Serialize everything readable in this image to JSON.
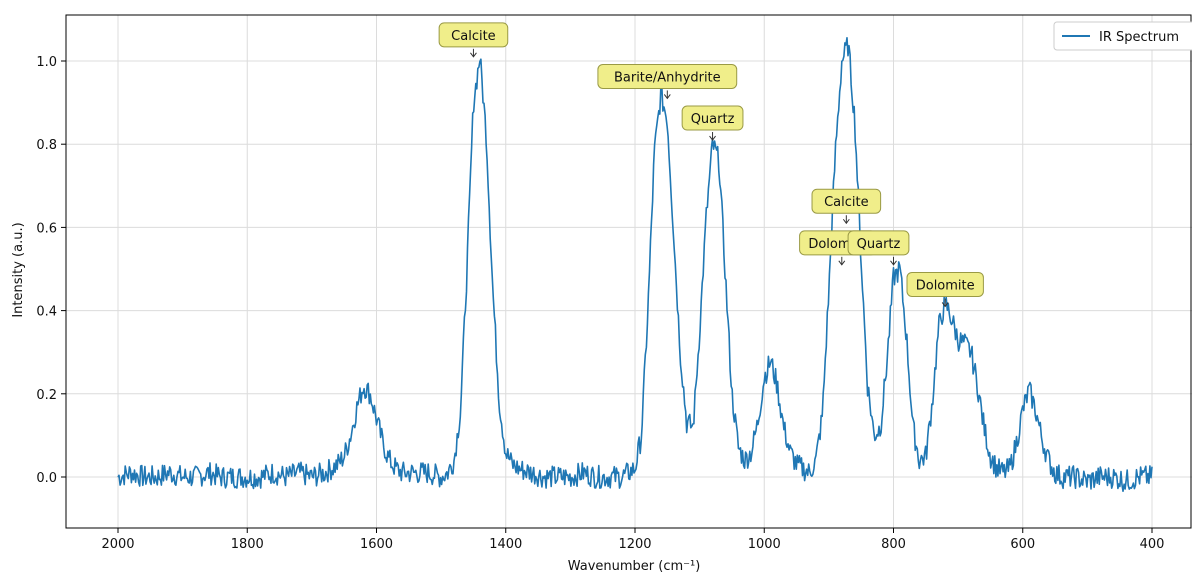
{
  "chart_data": {
    "type": "line",
    "xlabel": "Wavenumber (cm⁻¹)",
    "ylabel": "Intensity (a.u.)",
    "xlim": [
      2000,
      400
    ],
    "x_reversed": true,
    "ylim": [
      -0.12,
      1.1
    ],
    "xticks": [
      2000,
      1800,
      1600,
      1400,
      1200,
      1000,
      800,
      600,
      400
    ],
    "yticks": [
      0.0,
      0.2,
      0.4,
      0.6,
      0.8,
      1.0
    ],
    "grid": true,
    "legend_position": "top-right",
    "series": [
      {
        "name": "IR Spectrum",
        "color": "#1f77b4",
        "x": [
          2000,
          1980,
          1960,
          1940,
          1920,
          1900,
          1880,
          1860,
          1840,
          1820,
          1800,
          1780,
          1760,
          1740,
          1720,
          1700,
          1680,
          1660,
          1650,
          1640,
          1630,
          1620,
          1610,
          1600,
          1590,
          1580,
          1570,
          1560,
          1540,
          1520,
          1500,
          1490,
          1480,
          1470,
          1460,
          1450,
          1440,
          1430,
          1420,
          1410,
          1400,
          1390,
          1380,
          1360,
          1340,
          1320,
          1300,
          1280,
          1260,
          1240,
          1220,
          1200,
          1190,
          1180,
          1170,
          1160,
          1150,
          1140,
          1130,
          1120,
          1110,
          1100,
          1090,
          1080,
          1070,
          1060,
          1050,
          1040,
          1030,
          1020,
          1010,
          1000,
          990,
          980,
          970,
          960,
          950,
          940,
          930,
          920,
          910,
          900,
          890,
          880,
          870,
          860,
          850,
          840,
          830,
          820,
          810,
          800,
          790,
          780,
          770,
          760,
          750,
          740,
          730,
          720,
          710,
          700,
          690,
          680,
          670,
          660,
          650,
          640,
          630,
          620,
          610,
          600,
          590,
          580,
          570,
          560,
          550,
          540,
          520,
          500,
          480,
          460,
          440,
          420,
          400
        ],
        "y": [
          0.0,
          0.01,
          0.0,
          0.0,
          0.01,
          0.0,
          0.0,
          0.01,
          0.0,
          0.0,
          0.0,
          0.0,
          0.01,
          0.0,
          0.01,
          0.0,
          0.01,
          0.03,
          0.05,
          0.1,
          0.17,
          0.22,
          0.2,
          0.14,
          0.08,
          0.04,
          0.02,
          0.01,
          0.01,
          0.01,
          0.0,
          0.01,
          0.04,
          0.16,
          0.5,
          0.9,
          1.01,
          0.82,
          0.45,
          0.18,
          0.06,
          0.03,
          0.02,
          0.01,
          0.0,
          0.0,
          0.0,
          0.01,
          0.0,
          0.0,
          0.0,
          0.02,
          0.1,
          0.4,
          0.78,
          0.92,
          0.86,
          0.58,
          0.3,
          0.13,
          0.12,
          0.35,
          0.62,
          0.8,
          0.76,
          0.48,
          0.2,
          0.07,
          0.04,
          0.06,
          0.13,
          0.24,
          0.28,
          0.22,
          0.12,
          0.06,
          0.03,
          0.02,
          0.01,
          0.04,
          0.15,
          0.45,
          0.78,
          1.0,
          1.04,
          0.86,
          0.52,
          0.22,
          0.1,
          0.12,
          0.28,
          0.48,
          0.5,
          0.34,
          0.12,
          0.04,
          0.05,
          0.18,
          0.36,
          0.42,
          0.38,
          0.33,
          0.32,
          0.3,
          0.22,
          0.12,
          0.05,
          0.02,
          0.01,
          0.02,
          0.08,
          0.16,
          0.21,
          0.16,
          0.09,
          0.04,
          0.01,
          0.0,
          0.0,
          -0.01,
          0.0,
          0.0,
          -0.01,
          0.0,
          0.0
        ]
      }
    ],
    "annotations": [
      {
        "label": "Calcite",
        "x": 1450,
        "y": 1.01
      },
      {
        "label": "Barite/Anhydrite",
        "x": 1150,
        "y": 0.91
      },
      {
        "label": "Quartz",
        "x": 1080,
        "y": 0.81
      },
      {
        "label": "Calcite",
        "x": 873,
        "y": 0.61
      },
      {
        "label": "Dolomite",
        "x": 880,
        "y": 0.51
      },
      {
        "label": "Quartz",
        "x": 800,
        "y": 0.51
      },
      {
        "label": "Dolomite",
        "x": 720,
        "y": 0.41
      }
    ],
    "annotation_style": {
      "fill": "#f0ee8a",
      "stroke": "#9a9a45"
    }
  }
}
